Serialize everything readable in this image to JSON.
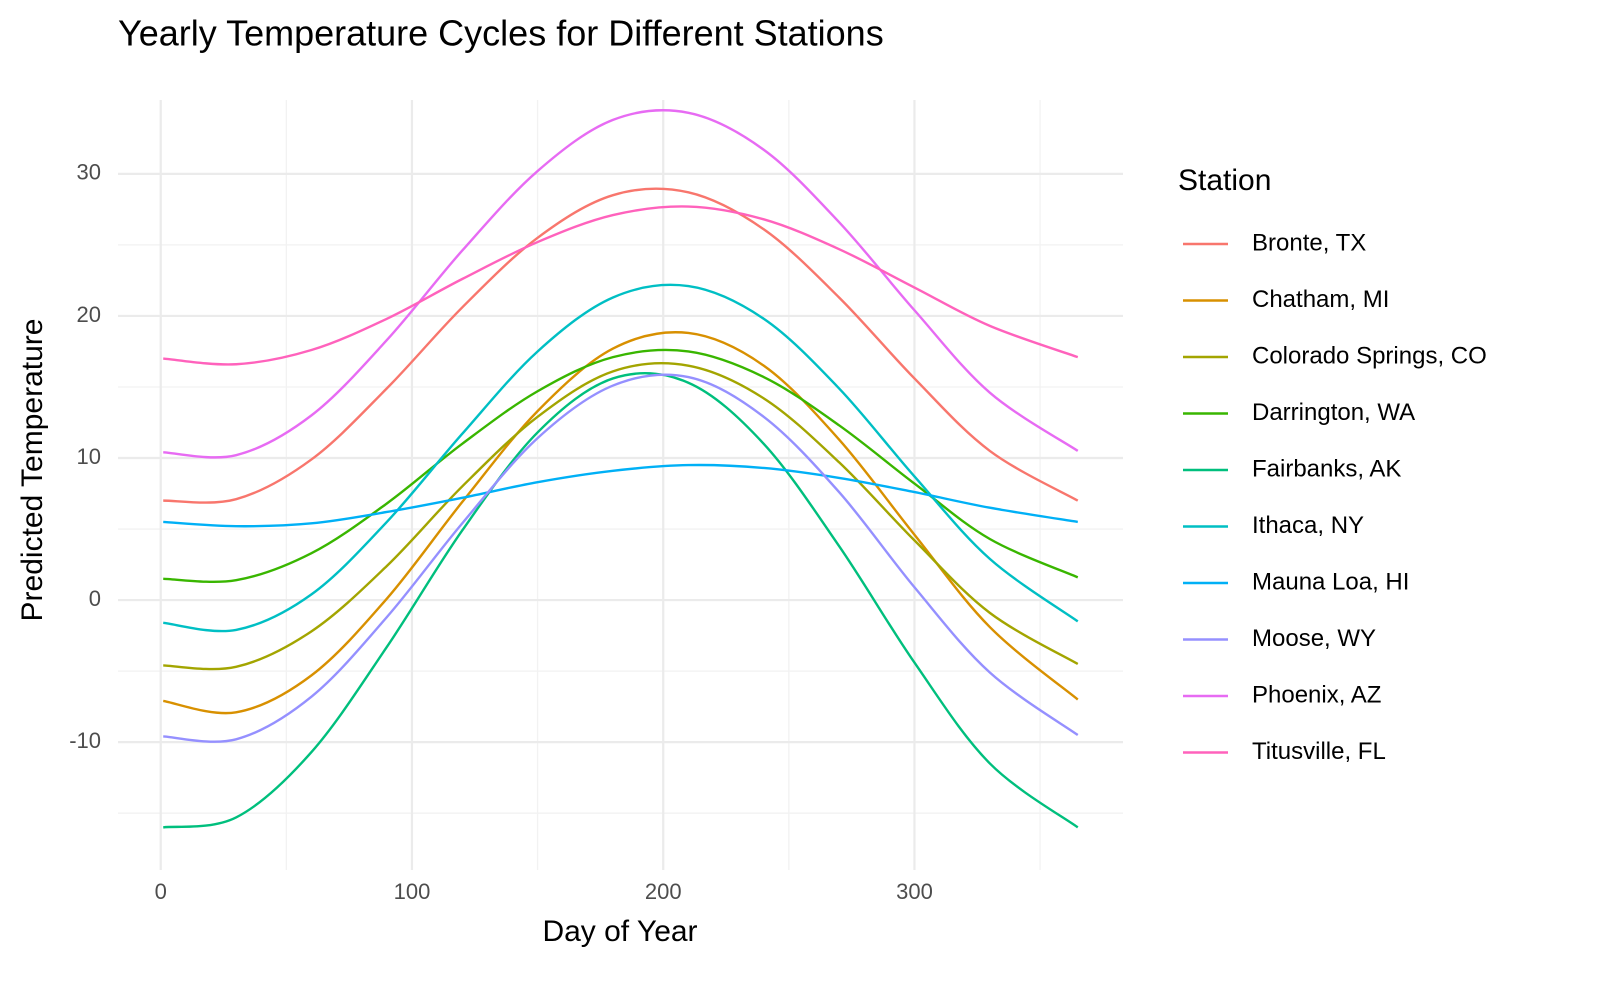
{
  "chart_data": {
    "type": "line",
    "title": "Yearly Temperature Cycles for Different Stations",
    "x_label": "Day of Year",
    "y_label": "Predicted Temperature",
    "legend_title": "Station",
    "legend_position": "right",
    "grid": true,
    "x": [
      1,
      30,
      60,
      90,
      120,
      150,
      180,
      210,
      240,
      270,
      300,
      330,
      365
    ],
    "xlim": [
      -17,
      383
    ],
    "ylim": [
      -19,
      35.2
    ],
    "xticks": [
      0,
      100,
      200,
      300
    ],
    "yticks": [
      -10,
      0,
      10,
      20,
      30
    ],
    "minor_xticks": [
      50,
      150,
      250,
      350
    ],
    "minor_yticks": [
      -15,
      -5,
      5,
      15,
      25
    ],
    "series": [
      {
        "name": "Bronte, TX",
        "color": "#F8766D",
        "values": [
          7.0,
          7.1,
          9.9,
          14.9,
          20.6,
          25.5,
          28.5,
          28.7,
          26.1,
          21.3,
          15.6,
          10.5,
          7.0
        ]
      },
      {
        "name": "Chatham, MI",
        "color": "#D89000",
        "values": [
          -7.1,
          -7.9,
          -5.3,
          0.1,
          6.9,
          13.3,
          17.7,
          18.8,
          16.5,
          11.3,
          4.6,
          -1.9,
          -7.0
        ]
      },
      {
        "name": "Colorado Springs, CO",
        "color": "#A3A500",
        "values": [
          -4.6,
          -4.7,
          -2.2,
          2.4,
          8.0,
          12.9,
          16.1,
          16.5,
          14.2,
          9.7,
          4.2,
          -0.9,
          -4.5
        ]
      },
      {
        "name": "Darrington, WA",
        "color": "#39B600",
        "values": [
          1.5,
          1.4,
          3.3,
          6.8,
          11.0,
          14.7,
          17.1,
          17.5,
          15.7,
          12.3,
          8.2,
          4.3,
          1.6
        ]
      },
      {
        "name": "Fairbanks, AK",
        "color": "#00BF7D",
        "values": [
          -16.0,
          -15.3,
          -10.7,
          -3.3,
          4.9,
          11.8,
          15.6,
          15.3,
          11.0,
          3.8,
          -4.4,
          -11.5,
          -16.0
        ]
      },
      {
        "name": "Ithaca, NY",
        "color": "#00BFC4",
        "values": [
          -1.6,
          -2.1,
          0.4,
          5.5,
          11.7,
          17.5,
          21.3,
          22.1,
          19.8,
          14.9,
          8.7,
          2.9,
          -1.5
        ]
      },
      {
        "name": "Mauna Loa, HI",
        "color": "#00B0F6",
        "values": [
          5.5,
          5.2,
          5.4,
          6.2,
          7.2,
          8.3,
          9.1,
          9.5,
          9.3,
          8.6,
          7.6,
          6.5,
          5.5
        ]
      },
      {
        "name": "Moose, WY",
        "color": "#9590FF",
        "values": [
          -9.6,
          -9.8,
          -6.8,
          -1.2,
          5.4,
          11.4,
          15.1,
          15.7,
          12.9,
          7.6,
          0.9,
          -5.1,
          -9.5
        ]
      },
      {
        "name": "Phoenix, AZ",
        "color": "#E76BF3",
        "values": [
          10.4,
          10.2,
          13.0,
          18.3,
          24.6,
          30.2,
          33.8,
          34.3,
          31.7,
          26.6,
          20.4,
          14.6,
          10.5
        ]
      },
      {
        "name": "Titusville, FL",
        "color": "#FF62BC",
        "values": [
          17.0,
          16.6,
          17.6,
          19.8,
          22.6,
          25.2,
          27.1,
          27.7,
          26.8,
          24.7,
          22.0,
          19.3,
          17.1
        ]
      }
    ]
  }
}
